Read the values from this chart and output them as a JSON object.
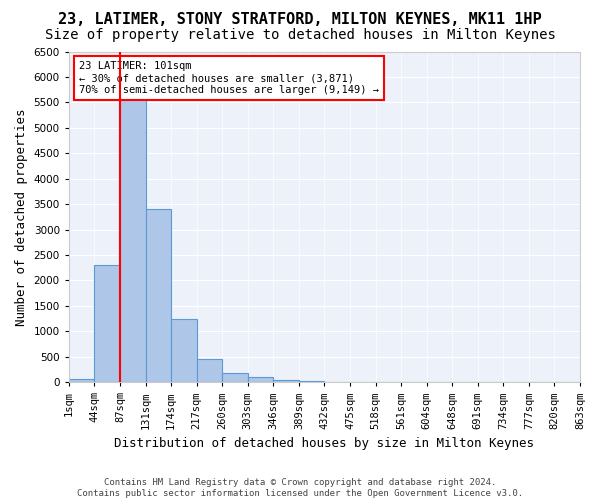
{
  "title": "23, LATIMER, STONY STRATFORD, MILTON KEYNES, MK11 1HP",
  "subtitle": "Size of property relative to detached houses in Milton Keynes",
  "xlabel": "Distribution of detached houses by size in Milton Keynes",
  "ylabel": "Number of detached properties",
  "footer_line1": "Contains HM Land Registry data © Crown copyright and database right 2024.",
  "footer_line2": "Contains public sector information licensed under the Open Government Licence v3.0.",
  "annotation_line1": "23 LATIMER: 101sqm",
  "annotation_line2": "← 30% of detached houses are smaller (3,871)",
  "annotation_line3": "70% of semi-detached houses are larger (9,149) →",
  "bin_edges": [
    "1sqm",
    "44sqm",
    "87sqm",
    "131sqm",
    "174sqm",
    "217sqm",
    "260sqm",
    "303sqm",
    "346sqm",
    "389sqm",
    "432sqm",
    "475sqm",
    "518sqm",
    "561sqm",
    "604sqm",
    "648sqm",
    "691sqm",
    "734sqm",
    "777sqm",
    "820sqm",
    "863sqm"
  ],
  "bar_values": [
    60,
    2300,
    6050,
    3400,
    1250,
    450,
    180,
    100,
    50,
    20,
    10,
    5,
    3,
    2,
    1,
    1,
    0,
    0,
    0,
    0
  ],
  "bar_color": "#aec6e8",
  "bar_edge_color": "#5b9bd5",
  "marker_bin": 2,
  "marker_color": "red",
  "ylim": [
    0,
    6500
  ],
  "yticks": [
    0,
    500,
    1000,
    1500,
    2000,
    2500,
    3000,
    3500,
    4000,
    4500,
    5000,
    5500,
    6000,
    6500
  ],
  "bg_color": "#edf1f9",
  "title_fontsize": 11,
  "subtitle_fontsize": 10,
  "axis_label_fontsize": 9,
  "tick_fontsize": 7.5,
  "footer_fontsize": 6.5
}
